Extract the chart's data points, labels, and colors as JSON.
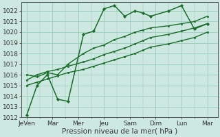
{
  "bg_color": "#cce8e0",
  "grid_color": "#99ccbb",
  "line_color": "#1a6b2a",
  "marker_color": "#1a6b2a",
  "xlabel": "Pression niveau de la mer( hPa )",
  "ylim": [
    1012,
    1022.8
  ],
  "yticks": [
    1012,
    1013,
    1014,
    1015,
    1016,
    1017,
    1018,
    1019,
    1020,
    1021,
    1022
  ],
  "xtick_labels": [
    "JeVen",
    "Mar",
    "Mer",
    "Jeu",
    "Sam",
    "Dim",
    "Lun",
    "Mar"
  ],
  "series": [
    [
      1012.2,
      1015.0,
      1016.0,
      1013.7,
      1013.5,
      1019.8,
      1020.1,
      1022.2,
      1022.5,
      1021.5,
      1022.0,
      1021.8,
      1021.5,
      1022.0,
      1022.5,
      1020.3,
      1020.8
    ],
    [
      1016.0,
      1015.8,
      1016.2,
      1016.0,
      1017.0,
      1018.0,
      1018.5,
      1018.8,
      1019.3,
      1019.6,
      1020.0,
      1020.2,
      1020.4,
      1020.6,
      1020.8,
      1021.0,
      1021.5
    ],
    [
      1015.5,
      1016.0,
      1016.3,
      1016.5,
      1016.8,
      1017.2,
      1017.5,
      1017.9,
      1018.2,
      1018.5,
      1018.9,
      1019.2,
      1019.5,
      1019.8,
      1020.1,
      1020.4,
      1020.8
    ],
    [
      1015.0,
      1015.3,
      1015.6,
      1015.9,
      1016.2,
      1016.5,
      1016.8,
      1017.1,
      1017.4,
      1017.7,
      1018.0,
      1018.3,
      1018.6,
      1018.9,
      1019.2,
      1019.5,
      1020.0
    ]
  ],
  "x_positions": [
    0,
    0.4,
    0.8,
    1.2,
    1.6,
    2.2,
    2.6,
    3.0,
    3.4,
    3.8,
    4.2,
    4.5,
    4.8,
    5.5,
    6.0,
    6.5,
    7.0
  ],
  "xtick_positions": [
    0.0,
    1.0,
    2.0,
    3.0,
    4.0,
    5.0,
    6.0,
    7.0
  ],
  "tick_fontsize": 6.5,
  "xlabel_fontsize": 7.5
}
